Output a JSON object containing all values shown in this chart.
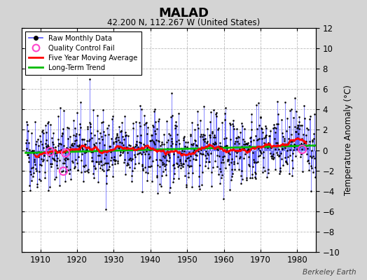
{
  "title": "MALAD",
  "subtitle": "42.200 N, 112.267 W (United States)",
  "ylabel": "Temperature Anomaly (°C)",
  "xlim": [
    1905,
    1985
  ],
  "ylim": [
    -10,
    12
  ],
  "yticks": [
    -10,
    -8,
    -6,
    -4,
    -2,
    0,
    2,
    4,
    6,
    8,
    10,
    12
  ],
  "xticks": [
    1910,
    1920,
    1930,
    1940,
    1950,
    1960,
    1970,
    1980
  ],
  "start_year": 1906,
  "end_year": 1984,
  "background_color": "#d4d4d4",
  "plot_bg_color": "#ffffff",
  "raw_line_color": "#5555ff",
  "raw_dot_color": "#000000",
  "moving_avg_color": "#ff0000",
  "trend_color": "#00bb00",
  "qc_fail_color": "#ff44cc",
  "watermark": "Berkeley Earth",
  "seed": 42,
  "qc_years": [
    1912.5,
    1916.3,
    1916.7,
    1981.2
  ]
}
